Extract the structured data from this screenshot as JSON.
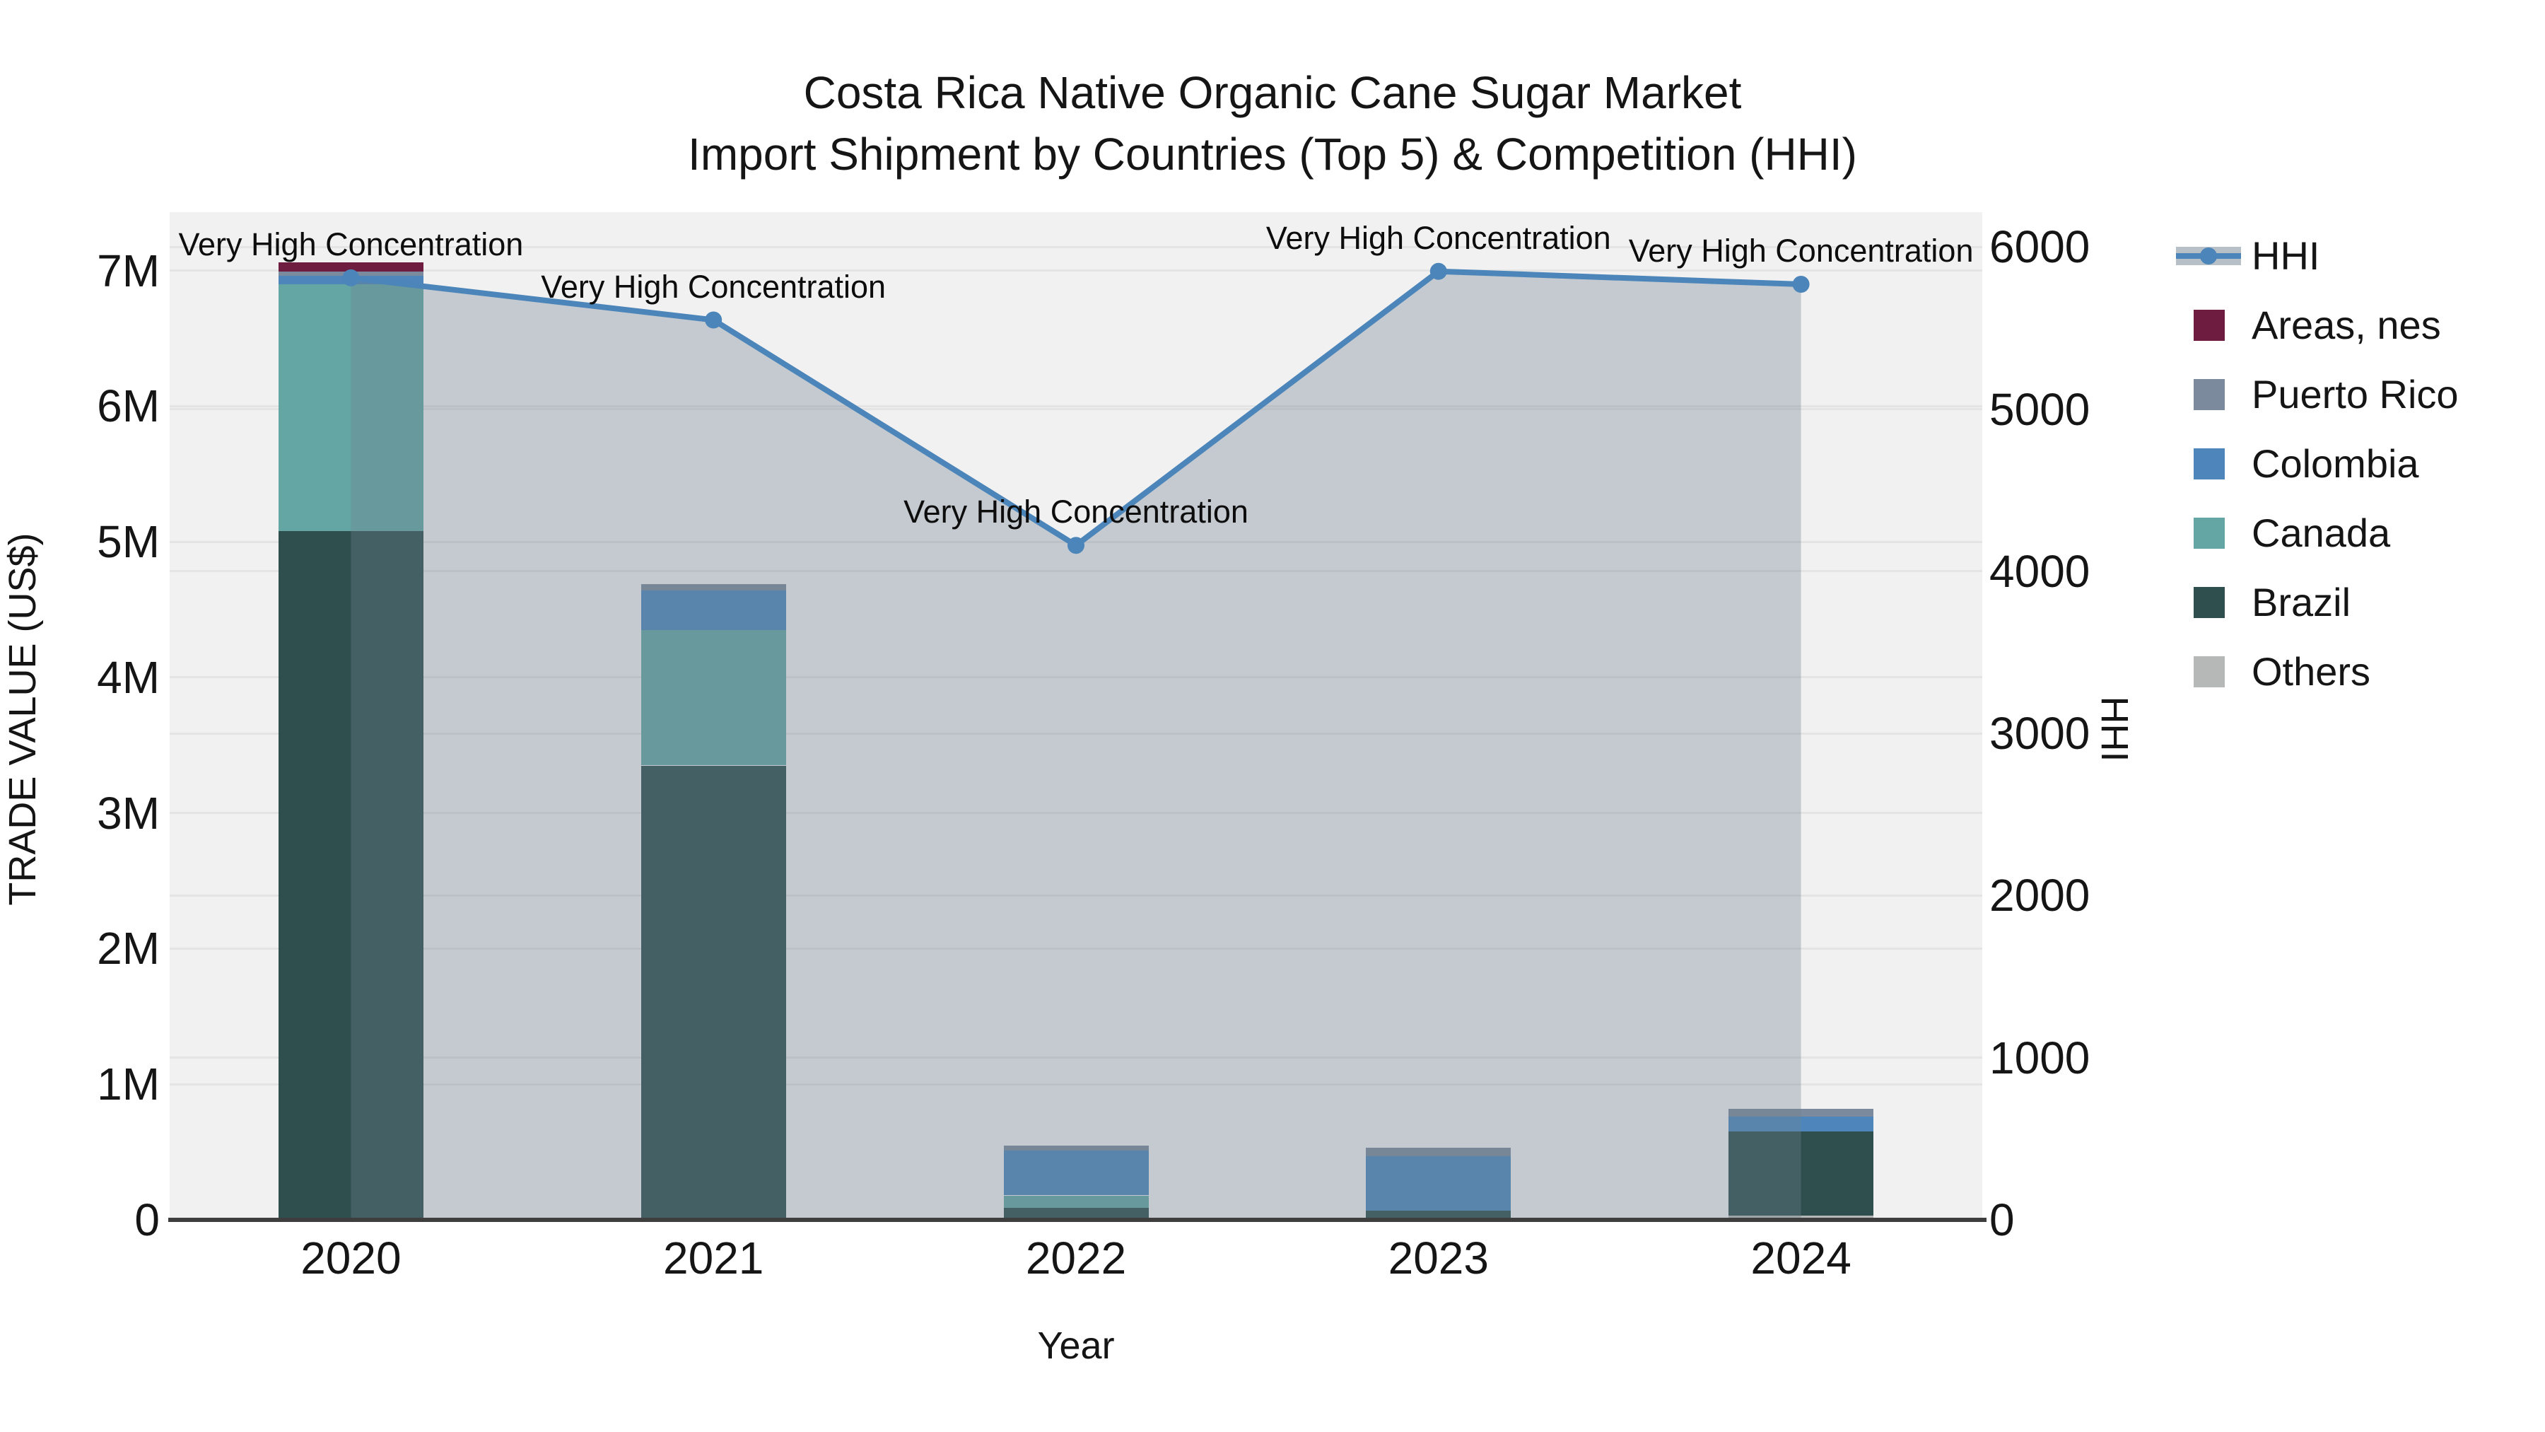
{
  "colors": {
    "page_bg": "#FFFFFF",
    "plot_bg": "#F2F1F1",
    "grid": "#E4E4E4",
    "axis_line": "#3E3E3E",
    "text": "#151515"
  },
  "chart_data": {
    "type": "combo: stacked-bar + line",
    "title_line1": "Costa Rica Native Organic Cane Sugar Market",
    "title_line2": "Import Shipment by Countries (Top 5) & Competition (HHI)",
    "xlabel": "Year",
    "ylabel_left": "TRADE VALUE (US$)",
    "ylabel_right": "HHI",
    "unit_note": "bar values in millions of US$ read from axis",
    "categories": [
      "2020",
      "2021",
      "2022",
      "2023",
      "2024"
    ],
    "bar_series": [
      {
        "name": "Others",
        "color": "#B5B8B7",
        "values_musd": [
          0,
          0,
          0,
          0,
          0.03
        ]
      },
      {
        "name": "Brazil",
        "color": "#2E4F4D",
        "values_musd": [
          5.08,
          3.35,
          0.09,
          0.07,
          0.62
        ]
      },
      {
        "name": "Canada",
        "color": "#64A6A3",
        "values_musd": [
          1.82,
          1.0,
          0.09,
          0,
          0
        ]
      },
      {
        "name": "Colombia",
        "color": "#4E86BC",
        "values_musd": [
          0.06,
          0.29,
          0.33,
          0.4,
          0.11
        ]
      },
      {
        "name": "Puerto Rico",
        "color": "#7B8B9D",
        "values_musd": [
          0.03,
          0.05,
          0.04,
          0.06,
          0.06
        ]
      },
      {
        "name": "Areas, nes",
        "color": "#6E1C3F",
        "values_musd": [
          0.07,
          0,
          0,
          0,
          0
        ]
      }
    ],
    "line_series": {
      "name": "HHI",
      "color": "#4C85B9",
      "fill_color": "#708090",
      "fill_alpha": 0.35,
      "values": [
        5810,
        5550,
        4160,
        5850,
        5770
      ]
    },
    "annotations": [
      "Very High Concentration",
      "Very High Concentration",
      "Very High Concentration",
      "Very High Concentration",
      "Very High Concentration"
    ],
    "axes": {
      "left": {
        "ticks": [
          "0",
          "1M",
          "2M",
          "3M",
          "4M",
          "5M",
          "6M",
          "7M"
        ],
        "tick_values_musd": [
          0,
          1,
          2,
          3,
          4,
          5,
          6,
          7
        ],
        "max_musd": 7.43
      },
      "right": {
        "ticks": [
          "0",
          "1000",
          "2000",
          "3000",
          "4000",
          "5000",
          "6000"
        ],
        "tick_values": [
          0,
          1000,
          2000,
          3000,
          4000,
          5000,
          6000
        ],
        "max": 6215
      },
      "grid": "horizontal, both axes, light grey on grey panel",
      "legend_position": "outside top-right"
    },
    "legend": [
      {
        "label": "HHI",
        "type": "line",
        "color": "#4C85B9"
      },
      {
        "label": "Areas, nes",
        "type": "patch",
        "color": "#6E1C3F"
      },
      {
        "label": "Puerto Rico",
        "type": "patch",
        "color": "#7B8B9D"
      },
      {
        "label": "Colombia",
        "type": "patch",
        "color": "#4E86BC"
      },
      {
        "label": "Canada",
        "type": "patch",
        "color": "#64A6A3"
      },
      {
        "label": "Brazil",
        "type": "patch",
        "color": "#2E4F4D"
      },
      {
        "label": "Others",
        "type": "patch",
        "color": "#B5B8B7"
      }
    ]
  }
}
